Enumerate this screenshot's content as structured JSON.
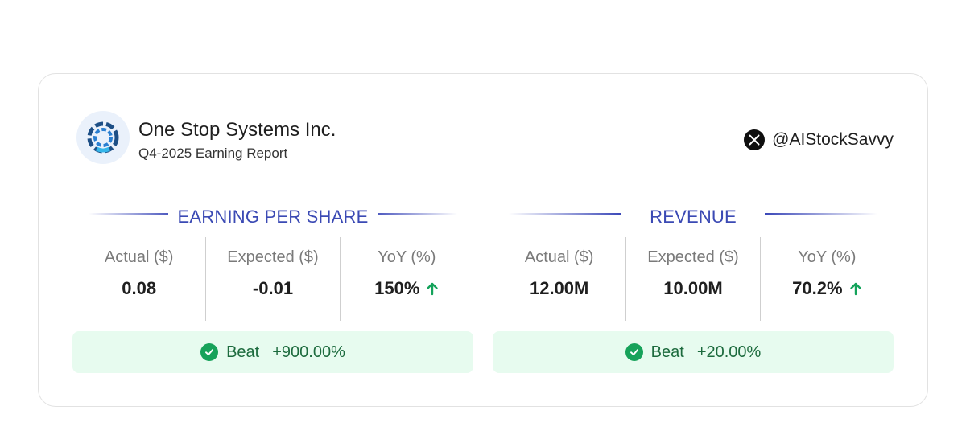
{
  "header": {
    "company": "One Stop Systems Inc.",
    "report": "Q4-2025 Earning Report",
    "handle": "@AIStockSavvy",
    "logo_icon": "ring-logo-icon",
    "handle_icon": "x-logo-icon"
  },
  "eps": {
    "title": "EARNING PER SHARE",
    "actual_label": "Actual ($)",
    "actual_value": "0.08",
    "expected_label": "Expected ($)",
    "expected_value": "-0.01",
    "yoy_label": "YoY (%)",
    "yoy_value": "150%",
    "yoy_icon": "arrow-up-icon",
    "beat_label": "Beat",
    "beat_pct": "+900.00%"
  },
  "revenue": {
    "title": "REVENUE",
    "actual_label": "Actual ($)",
    "actual_value": "12.00M",
    "expected_label": "Expected ($)",
    "expected_value": "10.00M",
    "yoy_label": "YoY (%)",
    "yoy_value": "70.2%",
    "yoy_icon": "arrow-up-icon",
    "beat_label": "Beat",
    "beat_pct": "+20.00%"
  },
  "colors": {
    "accent": "#3b4ab4",
    "positive": "#14a35b",
    "beat_bg": "#e7fbef"
  }
}
